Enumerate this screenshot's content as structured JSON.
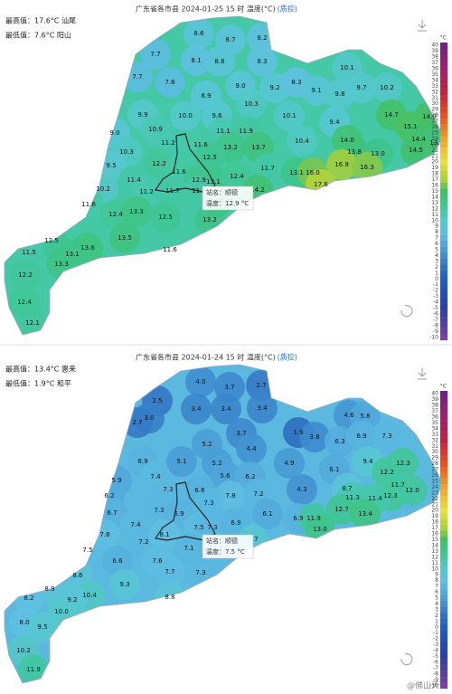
{
  "panels": [
    {
      "title": "广东省各市县 2024-01-25 15 时 温度(°C)",
      "qc": "(质控)",
      "max": "最高值：17.6°C 汕尾",
      "min": "最低值：7.6°C 阳山",
      "tooltip": {
        "station": "站名：顺德",
        "temp": "温度：12.9 °C"
      },
      "legend_unit": "°C",
      "legend": [
        40,
        39,
        38,
        37,
        36,
        35,
        34,
        33,
        32,
        31,
        30,
        29,
        28,
        27,
        26,
        25,
        24,
        23,
        22,
        21,
        20,
        19,
        18,
        17,
        16,
        15,
        14,
        13,
        12,
        11,
        10,
        9,
        8,
        7,
        6,
        5,
        4,
        3,
        2,
        1,
        0,
        -1,
        -2,
        -3,
        -4,
        -5,
        -6,
        -7,
        -8,
        -9,
        -10
      ],
      "values": [
        "8.6",
        "8.7",
        "8.2",
        "7.7",
        "8.1",
        "8.8",
        "8.3",
        "10.1",
        "7.7",
        "7.6",
        "9.0",
        "9.2",
        "8.3",
        "9.1",
        "9.8",
        "9.7",
        "10.2",
        "8.9",
        "9.9",
        "10.0",
        "9.6",
        "10.3",
        "10.1",
        "9.4",
        "14.7",
        "14.9",
        "9.0",
        "10.9",
        "11.1",
        "11.9",
        "15.1",
        "11.2",
        "11.6",
        "13.2",
        "13.7",
        "10.4",
        "14.0",
        "14.4",
        "13.7",
        "10.3",
        "12.5",
        "13.8",
        "13.0",
        "14.5",
        "9.5",
        "12.2",
        "11.6",
        "11.7",
        "13.1",
        "16.0",
        "16.9",
        "16.3",
        "11.4",
        "12.9",
        "13.1",
        "12.4",
        "17.6",
        "10.2",
        "11.7",
        "11.2",
        "11.7",
        "14.2",
        "13.6",
        "11.6",
        "12.4",
        "13.3",
        "12.5",
        "13.2",
        "12.5",
        "13.5",
        "13.6",
        "11.6",
        "11.5",
        "13.1",
        "13.3",
        "12.2",
        "12.4",
        "12.1"
      ]
    },
    {
      "title": "广东省各市县 2024-01-24 15 时 温度(°C)",
      "qc": "(质控)",
      "max": "最高值：13.4°C 惠来",
      "min": "最低值：1.9°C 和平",
      "tooltip": {
        "station": "站名：顺德",
        "temp": "温度：7.5 °C"
      },
      "legend_unit": "°C",
      "legend": [
        40,
        39,
        38,
        37,
        36,
        35,
        34,
        33,
        32,
        31,
        30,
        29,
        28,
        27,
        26,
        25,
        24,
        23,
        22,
        21,
        20,
        19,
        18,
        17,
        16,
        15,
        14,
        13,
        12,
        11,
        10,
        9,
        8,
        7,
        6,
        5,
        4,
        3,
        2,
        1,
        0,
        -1,
        -2,
        -3,
        -4,
        -5,
        -6,
        -7,
        -8,
        -9,
        -10
      ],
      "values": [
        "4.0",
        "3.7",
        "2.7",
        "2.5",
        "3.4",
        "3.4",
        "3.4",
        "4.6",
        "5.8",
        "3.0",
        "2.7",
        "3.7",
        "1.9",
        "3.8",
        "6.3",
        "6.9",
        "7.3",
        "5.2",
        "4.4",
        "6.9",
        "5.1",
        "5.2",
        "4.9",
        "6.1",
        "9.4",
        "12.3",
        "5.9",
        "7.4",
        "5.6",
        "6.2",
        "12.2",
        "7.3",
        "6.6",
        "7.8",
        "7.2",
        "4.3",
        "8.7",
        "11.7",
        "12.3",
        "12.0",
        "6.2",
        "7.3",
        "11.3",
        "11.4",
        "6.7",
        "7.3",
        "6.9",
        "7.5",
        "7.3",
        "6.1",
        "6.9",
        "11.9",
        "12.7",
        "13.4",
        "7.4",
        "7.2",
        "6.9",
        "9.7",
        "13.0",
        "7.8",
        "8.1",
        "7.5",
        "7.1",
        "6.6",
        "7.6",
        "7.7",
        "7.3",
        "8.6",
        "8.9",
        "9.3",
        "10.4",
        "9.2",
        "8.8",
        "8.2",
        "10.0",
        "8.0",
        "9.5",
        "10.2",
        "11.9"
      ]
    }
  ],
  "watermark": "@佛山天气"
}
